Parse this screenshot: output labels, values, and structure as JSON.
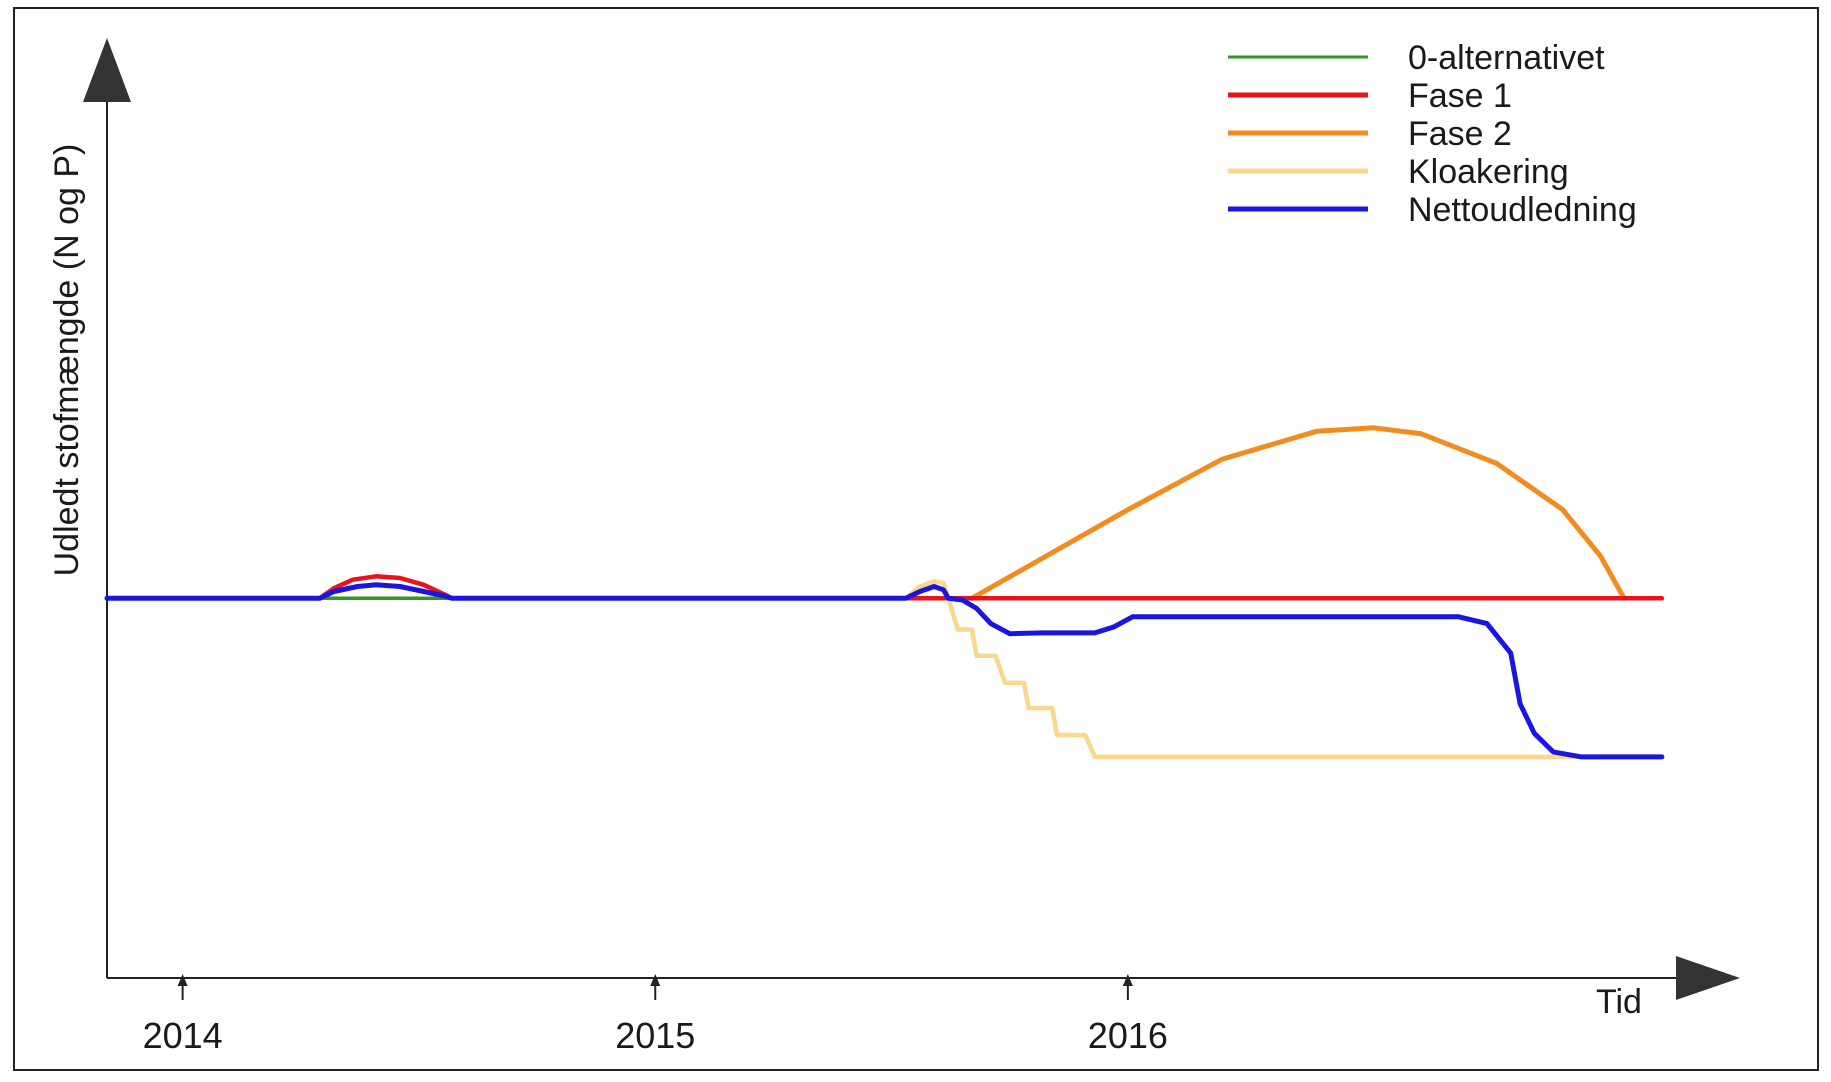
{
  "chart_data": {
    "type": "line",
    "title": "",
    "ylabel": "Udledt stofmængde (N og P)",
    "xlabel": "Tid",
    "x_ticks": [
      {
        "label": "2014",
        "x": 2014.0
      },
      {
        "label": "2015",
        "x": 2015.0
      },
      {
        "label": "2016",
        "x": 2016.0
      }
    ],
    "xlim": [
      2013.84,
      2017.2
    ],
    "ylim": [
      -4.5,
      6.0
    ],
    "y_tick_labels": false,
    "grid": false,
    "legend_position": "top-right",
    "series": [
      {
        "name": "0-alternativet",
        "color": "#2e9a22",
        "points": [
          [
            2013.84,
            0
          ],
          [
            2017.13,
            0
          ]
        ]
      },
      {
        "name": "Fase 1",
        "color": "#e8141c",
        "points": [
          [
            2013.84,
            0
          ],
          [
            2014.29,
            0
          ],
          [
            2014.32,
            0.12
          ],
          [
            2014.36,
            0.22
          ],
          [
            2014.41,
            0.26
          ],
          [
            2014.46,
            0.24
          ],
          [
            2014.51,
            0.16
          ],
          [
            2014.56,
            0.03
          ],
          [
            2014.57,
            0
          ],
          [
            2017.13,
            0
          ]
        ]
      },
      {
        "name": "Fase 2",
        "color": "#f28c1e",
        "points": [
          [
            2015.67,
            0
          ],
          [
            2016.0,
            1.05
          ],
          [
            2016.2,
            1.65
          ],
          [
            2016.4,
            1.98
          ],
          [
            2016.52,
            2.02
          ],
          [
            2016.62,
            1.95
          ],
          [
            2016.78,
            1.6
          ],
          [
            2016.92,
            1.05
          ],
          [
            2017.0,
            0.5
          ],
          [
            2017.05,
            0
          ]
        ]
      },
      {
        "name": "Kloakering",
        "color": "#fad78a",
        "points": [
          [
            2015.53,
            0
          ],
          [
            2015.56,
            0.14
          ],
          [
            2015.59,
            0.2
          ],
          [
            2015.61,
            0.18
          ],
          [
            2015.62,
            0
          ],
          [
            2015.64,
            -0.37
          ],
          [
            2015.67,
            -0.37
          ],
          [
            2015.68,
            -0.68
          ],
          [
            2015.72,
            -0.68
          ],
          [
            2015.74,
            -1.0
          ],
          [
            2015.78,
            -1.0
          ],
          [
            2015.79,
            -1.3
          ],
          [
            2015.84,
            -1.3
          ],
          [
            2015.85,
            -1.62
          ],
          [
            2015.91,
            -1.62
          ],
          [
            2015.93,
            -1.88
          ],
          [
            2017.0,
            -1.88
          ]
        ]
      },
      {
        "name": "Nettoudledning",
        "color": "#1a16e0",
        "points": [
          [
            2013.84,
            0
          ],
          [
            2014.29,
            0
          ],
          [
            2014.32,
            0.08
          ],
          [
            2014.37,
            0.14
          ],
          [
            2014.41,
            0.16
          ],
          [
            2014.46,
            0.14
          ],
          [
            2014.51,
            0.08
          ],
          [
            2014.56,
            0.02
          ],
          [
            2014.57,
            0
          ],
          [
            2015.53,
            0
          ],
          [
            2015.56,
            0.08
          ],
          [
            2015.59,
            0.14
          ],
          [
            2015.61,
            0.1
          ],
          [
            2015.62,
            0
          ],
          [
            2015.65,
            -0.02
          ],
          [
            2015.68,
            -0.12
          ],
          [
            2015.71,
            -0.3
          ],
          [
            2015.75,
            -0.42
          ],
          [
            2015.82,
            -0.41
          ],
          [
            2015.93,
            -0.41
          ],
          [
            2015.97,
            -0.34
          ],
          [
            2016.01,
            -0.22
          ],
          [
            2016.2,
            -0.22
          ],
          [
            2016.45,
            -0.22
          ],
          [
            2016.7,
            -0.22
          ],
          [
            2016.76,
            -0.3
          ],
          [
            2016.81,
            -0.65
          ],
          [
            2016.83,
            -1.25
          ],
          [
            2016.86,
            -1.6
          ],
          [
            2016.9,
            -1.82
          ],
          [
            2016.96,
            -1.88
          ],
          [
            2017.13,
            -1.88
          ]
        ]
      }
    ]
  }
}
